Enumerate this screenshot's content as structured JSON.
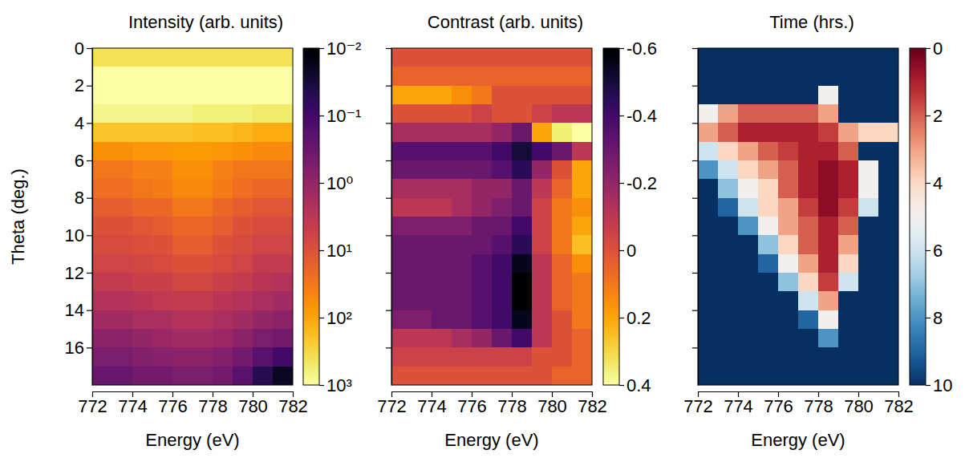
{
  "chart_data": [
    {
      "type": "heatmap",
      "title": "Intensity (arb. units)",
      "x_label": "Energy (eV)",
      "y_label": "Theta (deg.)",
      "x_edges": [
        772,
        773,
        774,
        775,
        776,
        777,
        778,
        779,
        780,
        781,
        782
      ],
      "y_edges": [
        0,
        1,
        2,
        3,
        4,
        5,
        6,
        7,
        8,
        9,
        10,
        11,
        12,
        13,
        14,
        15,
        16,
        17,
        18
      ],
      "values": [
        [
          400,
          400,
          400,
          400,
          400,
          400,
          400,
          400,
          400,
          400
        ],
        [
          1000,
          1000,
          1000,
          1000,
          1000,
          1000,
          1000,
          1000,
          1000,
          1000
        ],
        [
          1000,
          1000,
          1000,
          1000,
          1000,
          1000,
          1000,
          1000,
          1000,
          1000
        ],
        [
          700,
          700,
          700,
          700,
          700,
          600,
          600,
          600,
          500,
          500
        ],
        [
          200,
          200,
          200,
          200,
          200,
          180,
          180,
          150,
          120,
          120
        ],
        [
          60,
          60,
          70,
          70,
          80,
          80,
          70,
          60,
          50,
          50
        ],
        [
          30,
          30,
          40,
          40,
          60,
          60,
          40,
          30,
          30,
          30
        ],
        [
          25,
          25,
          30,
          35,
          50,
          50,
          35,
          25,
          20,
          20
        ],
        [
          15,
          15,
          20,
          20,
          30,
          30,
          20,
          15,
          12,
          12
        ],
        [
          10,
          10,
          12,
          14,
          20,
          20,
          15,
          10,
          8,
          8
        ],
        [
          8,
          8,
          9,
          10,
          15,
          15,
          10,
          8,
          6,
          6
        ],
        [
          6,
          6,
          7,
          8,
          10,
          10,
          8,
          6,
          4,
          4
        ],
        [
          4,
          4,
          5,
          5,
          7,
          7,
          5,
          4,
          3,
          2.5
        ],
        [
          2.5,
          2.5,
          3,
          3.5,
          4,
          4,
          3,
          2.5,
          2,
          1.5
        ],
        [
          1.5,
          1.5,
          2,
          2,
          2.5,
          2.5,
          2,
          1.5,
          1,
          0.8
        ],
        [
          0.8,
          0.8,
          1,
          1.2,
          1.5,
          1.5,
          1.2,
          0.8,
          0.5,
          0.4
        ],
        [
          0.5,
          0.5,
          0.6,
          0.7,
          0.8,
          0.8,
          0.6,
          0.4,
          0.2,
          0.1
        ],
        [
          0.3,
          0.3,
          0.4,
          0.4,
          0.5,
          0.5,
          0.4,
          0.2,
          0.05,
          0.02
        ]
      ],
      "xlim": [
        772,
        782
      ],
      "xticks": [
        772,
        774,
        776,
        778,
        780,
        782
      ],
      "ylim": [
        0,
        18
      ],
      "yticks": [
        0,
        2,
        4,
        6,
        8,
        10,
        12,
        14,
        16
      ],
      "color": "inferno",
      "colorbar": {
        "lim": [
          0.01,
          1000
        ],
        "log": true,
        "ticks": [
          {
            "value": 0.01,
            "label": "10⁻²"
          },
          {
            "value": 0.1,
            "label": "10⁻¹"
          },
          {
            "value": 1,
            "label": "10⁰"
          },
          {
            "value": 10,
            "label": "10¹"
          },
          {
            "value": 100,
            "label": "10²"
          },
          {
            "value": 1000,
            "label": "10³"
          }
        ]
      }
    },
    {
      "type": "heatmap",
      "title": "Contrast (arb. units)",
      "x_label": "Energy (eV)",
      "x_edges": [
        772,
        773,
        774,
        775,
        776,
        777,
        778,
        779,
        780,
        781,
        782
      ],
      "y_edges": [
        0,
        1,
        2,
        3,
        4,
        5,
        6,
        7,
        8,
        9,
        10,
        11,
        12,
        13,
        14,
        15,
        16,
        17,
        18
      ],
      "values": [
        [
          0,
          0,
          0,
          0,
          0,
          0,
          0,
          0,
          0,
          0
        ],
        [
          0.05,
          0.05,
          0.05,
          0.05,
          0.05,
          0.05,
          0.05,
          0.05,
          0.05,
          0.05
        ],
        [
          0.2,
          0.2,
          0.2,
          0.15,
          0.1,
          0,
          0,
          0,
          0,
          0
        ],
        [
          0,
          0,
          0,
          0,
          -0.05,
          0,
          0,
          -0.05,
          -0.1,
          -0.1
        ],
        [
          -0.15,
          -0.15,
          -0.15,
          -0.15,
          -0.15,
          -0.2,
          -0.3,
          0.2,
          0.35,
          0.4
        ],
        [
          -0.35,
          -0.35,
          -0.35,
          -0.35,
          -0.35,
          -0.4,
          -0.5,
          -0.4,
          -0.3,
          -0.1
        ],
        [
          -0.3,
          -0.3,
          -0.3,
          -0.3,
          -0.3,
          -0.35,
          -0.45,
          -0.2,
          0,
          0.2
        ],
        [
          -0.15,
          -0.15,
          -0.15,
          -0.15,
          -0.2,
          -0.2,
          -0.3,
          -0.1,
          0.05,
          0.2
        ],
        [
          -0.1,
          -0.1,
          -0.1,
          -0.15,
          -0.2,
          -0.25,
          -0.3,
          -0.05,
          0.1,
          0.15
        ],
        [
          -0.25,
          -0.25,
          -0.25,
          -0.25,
          -0.3,
          -0.3,
          -0.4,
          -0.05,
          0.1,
          0.2
        ],
        [
          -0.3,
          -0.3,
          -0.3,
          -0.3,
          -0.3,
          -0.35,
          -0.45,
          -0.05,
          0.1,
          0.25
        ],
        [
          -0.3,
          -0.3,
          -0.3,
          -0.3,
          -0.35,
          -0.4,
          -0.55,
          -0.1,
          0.05,
          0.15
        ],
        [
          -0.3,
          -0.3,
          -0.3,
          -0.3,
          -0.35,
          -0.4,
          -0.6,
          -0.1,
          0.05,
          0.1
        ],
        [
          -0.3,
          -0.3,
          -0.3,
          -0.3,
          -0.35,
          -0.4,
          -0.6,
          -0.1,
          0.05,
          0.1
        ],
        [
          -0.25,
          -0.25,
          -0.3,
          -0.3,
          -0.35,
          -0.4,
          -0.55,
          -0.1,
          0,
          0.1
        ],
        [
          -0.1,
          -0.1,
          -0.1,
          -0.15,
          -0.2,
          -0.3,
          -0.4,
          -0.1,
          0,
          0.05
        ],
        [
          -0.05,
          -0.05,
          -0.05,
          -0.05,
          -0.05,
          -0.05,
          -0.05,
          0,
          0,
          0.05
        ],
        [
          0,
          0,
          0,
          0,
          0,
          0,
          0,
          0,
          0.05,
          0.05
        ]
      ],
      "xlim": [
        772,
        782
      ],
      "xticks": [
        772,
        774,
        776,
        778,
        780,
        782
      ],
      "ylim": [
        0,
        18
      ],
      "yticks": [
        0,
        2,
        4,
        6,
        8,
        10,
        12,
        14,
        16
      ],
      "tick_labels": "x",
      "color": "inferno",
      "colorbar": {
        "lim": [
          -0.6,
          0.4
        ],
        "ticks": [
          -0.6,
          -0.4,
          -0.2,
          0,
          0.2,
          0.4
        ]
      }
    },
    {
      "type": "heatmap",
      "title": "Time (hrs.)",
      "x_label": "Energy (eV)",
      "x_edges": [
        772,
        773,
        774,
        775,
        776,
        777,
        778,
        779,
        780,
        781,
        782
      ],
      "y_edges": [
        0,
        1,
        2,
        3,
        4,
        5,
        6,
        7,
        8,
        9,
        10,
        11,
        12,
        13,
        14,
        15,
        16,
        17,
        18
      ],
      "values": [
        [
          10,
          10,
          10,
          10,
          10,
          10,
          10,
          10,
          10,
          10
        ],
        [
          10,
          10,
          10,
          10,
          10,
          10,
          10,
          10,
          10,
          10
        ],
        [
          10,
          10,
          10,
          10,
          10,
          10,
          5,
          10,
          10,
          10
        ],
        [
          5,
          3,
          2,
          2,
          2,
          2,
          3,
          10,
          10,
          10
        ],
        [
          3,
          2,
          1,
          1,
          1,
          1,
          1.5,
          3,
          4,
          4
        ],
        [
          6,
          4,
          3,
          2,
          1.5,
          1,
          1,
          2,
          10,
          10
        ],
        [
          8,
          6,
          4,
          3,
          2,
          1,
          0.5,
          1,
          5,
          10
        ],
        [
          10,
          7,
          5,
          4,
          2,
          1,
          0.5,
          1,
          5,
          10
        ],
        [
          10,
          9,
          6,
          4,
          3,
          1.5,
          0.5,
          1.5,
          6,
          10
        ],
        [
          10,
          10,
          8,
          5,
          3,
          2,
          1,
          2,
          10,
          10
        ],
        [
          10,
          10,
          10,
          7,
          4,
          2,
          1,
          3,
          10,
          10
        ],
        [
          10,
          10,
          10,
          9,
          5,
          3,
          1,
          4,
          10,
          10
        ],
        [
          10,
          10,
          10,
          10,
          7,
          4,
          1.5,
          6,
          10,
          10
        ],
        [
          10,
          10,
          10,
          10,
          10,
          6,
          3,
          10,
          10,
          10
        ],
        [
          10,
          10,
          10,
          10,
          10,
          9,
          5,
          10,
          10,
          10
        ],
        [
          10,
          10,
          10,
          10,
          10,
          10,
          8,
          10,
          10,
          10
        ],
        [
          10,
          10,
          10,
          10,
          10,
          10,
          10,
          10,
          10,
          10
        ],
        [
          10,
          10,
          10,
          10,
          10,
          10,
          10,
          10,
          10,
          10
        ]
      ],
      "xlim": [
        772,
        782
      ],
      "xticks": [
        772,
        774,
        776,
        778,
        780,
        782
      ],
      "ylim": [
        0,
        18
      ],
      "yticks": [
        0,
        2,
        4,
        6,
        8,
        10,
        12,
        14,
        16
      ],
      "tick_labels": "x",
      "color": "RdBu",
      "colorbar": {
        "lim": [
          0,
          10
        ],
        "ticks": [
          0,
          2,
          4,
          6,
          8,
          10
        ]
      }
    }
  ]
}
